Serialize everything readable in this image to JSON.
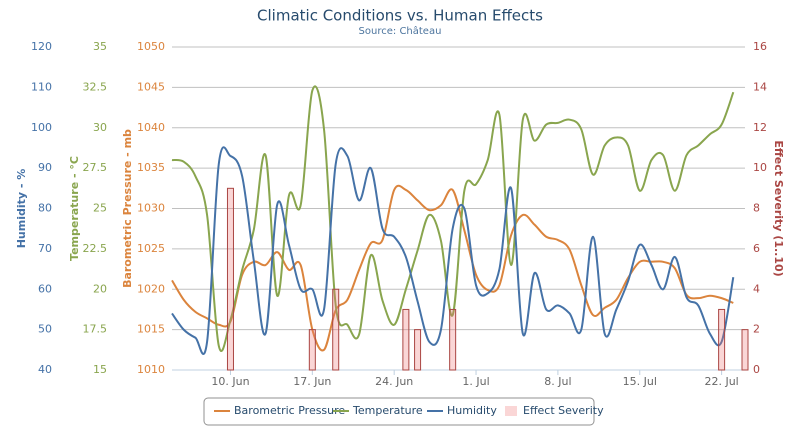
{
  "chart_data": {
    "type": "line",
    "title": "Climatic Conditions vs. Human Effects",
    "subtitle": "Source: Château",
    "x": [
      "5. Jun",
      "6. Jun",
      "7. Jun",
      "8. Jun",
      "9. Jun",
      "10. Jun",
      "11. Jun",
      "12. Jun",
      "13. Jun",
      "14. Jun",
      "15. Jun",
      "16. Jun",
      "17. Jun",
      "18. Jun",
      "19. Jun",
      "20. Jun",
      "21. Jun",
      "22. Jun",
      "23. Jun",
      "24. Jun",
      "25. Jun",
      "26. Jun",
      "27. Jun",
      "28. Jun",
      "29. Jun",
      "30. Jun",
      "1. Jul",
      "2. Jul",
      "3. Jul",
      "4. Jul",
      "5. Jul",
      "6. Jul",
      "7. Jul",
      "8. Jul",
      "9. Jul",
      "10. Jul",
      "11. Jul",
      "12. Jul",
      "13. Jul",
      "14. Jul",
      "15. Jul",
      "16. Jul",
      "17. Jul",
      "18. Jul",
      "19. Jul",
      "20. Jul",
      "21. Jul",
      "22. Jul",
      "23. Jul",
      "24. Jul"
    ],
    "xticks": [
      "10. Jun",
      "17. Jun",
      "24. Jun",
      "1. Jul",
      "8. Jul",
      "15. Jul",
      "22. Jul"
    ],
    "grid": true,
    "y_axes": [
      {
        "title": "Humidity - %",
        "ylim": [
          40,
          120
        ],
        "yticks": [
          40,
          50,
          60,
          70,
          80,
          90,
          100,
          110,
          120
        ],
        "color": "#4572a7",
        "side": "left"
      },
      {
        "title": "Temperature - °C",
        "ylim": [
          15,
          35
        ],
        "yticks": [
          15,
          17.5,
          20,
          22.5,
          25,
          27.5,
          30,
          32.5,
          35
        ],
        "color": "#89a54e",
        "side": "left"
      },
      {
        "title": "Barometric Pressure - mb",
        "ylim": [
          1010,
          1050
        ],
        "yticks": [
          1010,
          1015,
          1020,
          1025,
          1030,
          1035,
          1040,
          1045,
          1050
        ],
        "color": "#db843d",
        "side": "left"
      },
      {
        "title": "Effect Severity (1..10)",
        "ylim": [
          0,
          16
        ],
        "yticks": [
          0,
          2,
          4,
          6,
          8,
          10,
          12,
          14,
          16
        ],
        "color": "#aa4643",
        "side": "right"
      }
    ],
    "series": [
      {
        "name": "Barometric Pressure",
        "type": "line",
        "axis": 2,
        "color": "#db843d",
        "values": [
          1021.1,
          1018.7,
          1017.2,
          1016.4,
          1015.6,
          1016,
          1021.8,
          1023.4,
          1023,
          1024.6,
          1022.4,
          1023,
          1015,
          1012.5,
          1017.4,
          1018.7,
          1022.4,
          1025.7,
          1026.1,
          1032.3,
          1032.3,
          1031,
          1029.8,
          1030.4,
          1032.3,
          1027.3,
          1021.8,
          1019.9,
          1020.5,
          1026.7,
          1029.2,
          1028,
          1026.5,
          1026.1,
          1024.9,
          1020.5,
          1016.8,
          1017.7,
          1018.7,
          1021.4,
          1023.4,
          1023.4,
          1023.4,
          1022.6,
          1019.3,
          1018.9,
          1019.2,
          1018.9,
          1018.3,
          null
        ]
      },
      {
        "name": "Temperature",
        "type": "line",
        "axis": 1,
        "color": "#89a54e",
        "values": [
          28,
          27.9,
          27,
          24.6,
          16.5,
          18.1,
          21.2,
          23.7,
          28.3,
          19.6,
          25.8,
          25.2,
          32.3,
          29.9,
          19,
          17.8,
          17.2,
          22.1,
          19.3,
          17.8,
          20,
          22.4,
          24.6,
          23,
          18.4,
          26.1,
          26.5,
          28,
          30.8,
          21.5,
          30.5,
          29.2,
          30.2,
          30.3,
          30.5,
          29.9,
          27.1,
          28.9,
          29.4,
          28.9,
          26.1,
          28,
          28.3,
          26.1,
          28.3,
          28.9,
          29.6,
          30.2,
          32.2,
          null
        ]
      },
      {
        "name": "Humidity",
        "type": "line",
        "axis": 0,
        "color": "#4572a7",
        "values": [
          54,
          50,
          48,
          47,
          91,
          93,
          88,
          67,
          49,
          81,
          71,
          60,
          60,
          55,
          91,
          93,
          82,
          90,
          75,
          73,
          68,
          57,
          47,
          50,
          75,
          80,
          61,
          59,
          65,
          85,
          49,
          64,
          55,
          56,
          54,
          50,
          73,
          49,
          55,
          62,
          71,
          66,
          60,
          68,
          58,
          56,
          49,
          47,
          63,
          null
        ]
      },
      {
        "name": "Effect Severity",
        "type": "bar",
        "axis": 3,
        "color": "#aa4643",
        "values": [
          null,
          null,
          null,
          null,
          null,
          9,
          null,
          null,
          null,
          null,
          null,
          null,
          2,
          null,
          4,
          null,
          null,
          null,
          null,
          null,
          3,
          2,
          null,
          null,
          3,
          null,
          null,
          null,
          null,
          null,
          null,
          null,
          null,
          null,
          null,
          null,
          null,
          null,
          null,
          null,
          null,
          null,
          null,
          null,
          null,
          null,
          null,
          3,
          null,
          2
        ]
      }
    ]
  }
}
